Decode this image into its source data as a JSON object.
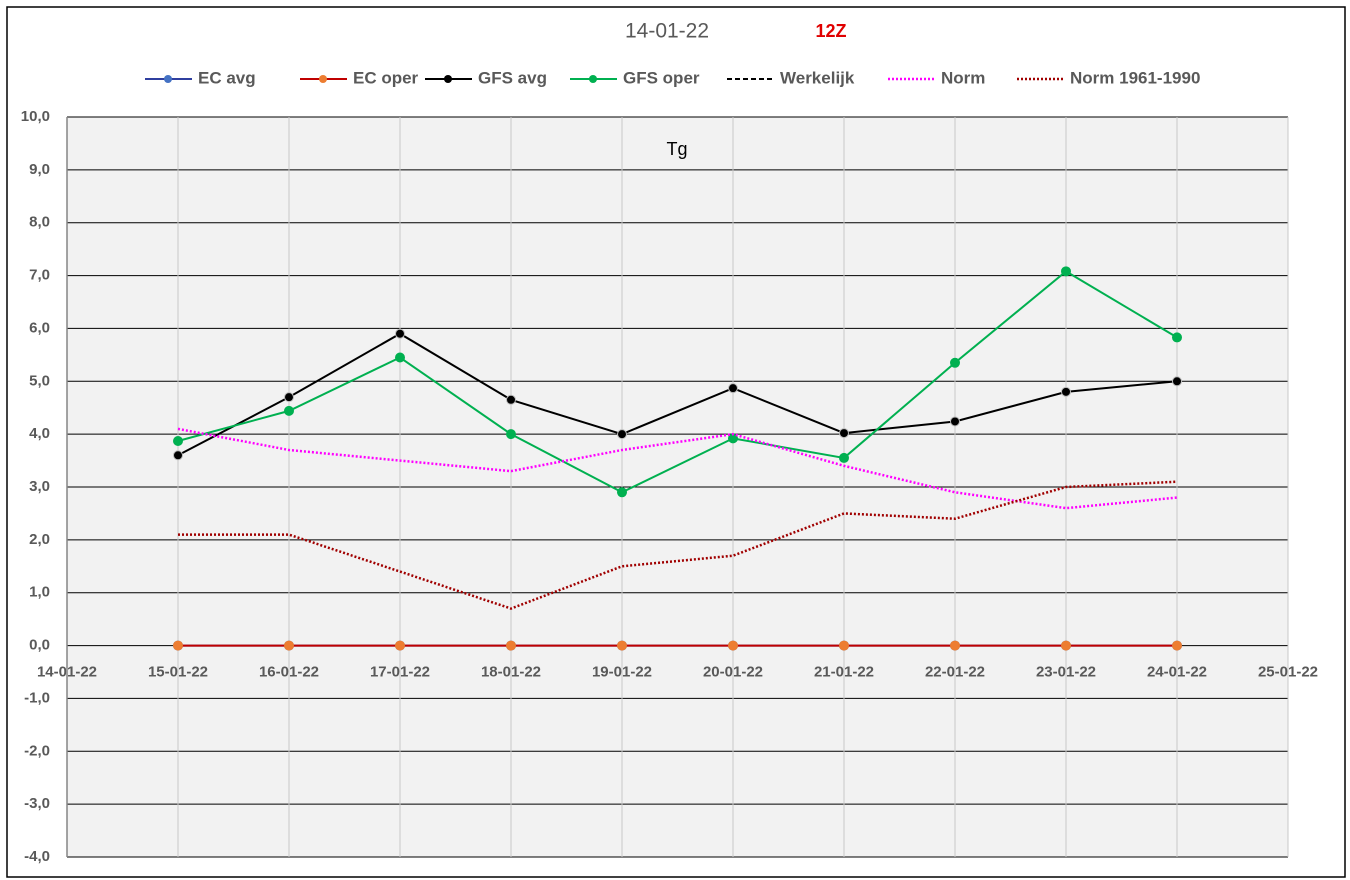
{
  "chart_data": {
    "type": "line",
    "title": "14-01-22",
    "subtitle": "12Z",
    "annotation": "Tg",
    "categories": [
      "14-01-22",
      "15-01-22",
      "16-01-22",
      "17-01-22",
      "18-01-22",
      "19-01-22",
      "20-01-22",
      "21-01-22",
      "22-01-22",
      "23-01-22",
      "24-01-22",
      "25-01-22"
    ],
    "ylim": [
      -4,
      10
    ],
    "yticks": [
      {
        "value": 10,
        "label": "10,0"
      },
      {
        "value": 9,
        "label": "9,0"
      },
      {
        "value": 8,
        "label": "8,0"
      },
      {
        "value": 7,
        "label": "7,0"
      },
      {
        "value": 6,
        "label": "6,0"
      },
      {
        "value": 5,
        "label": "5,0"
      },
      {
        "value": 4,
        "label": "4,0"
      },
      {
        "value": 3,
        "label": "3,0"
      },
      {
        "value": 2,
        "label": "2,0"
      },
      {
        "value": 1,
        "label": "1,0"
      },
      {
        "value": 0,
        "label": "0,0"
      },
      {
        "value": -1,
        "label": "-1,0"
      },
      {
        "value": -2,
        "label": "-2,0"
      },
      {
        "value": -3,
        "label": "-3,0"
      },
      {
        "value": -4,
        "label": "-4,0"
      }
    ],
    "grid": true,
    "series": [
      {
        "name": "EC avg",
        "color": "#2f3f9f",
        "marker_color": "#4472c4",
        "marker": true,
        "dash": "solid",
        "values": [
          null,
          0,
          0,
          0,
          0,
          0,
          0,
          0,
          0,
          0,
          0,
          null
        ]
      },
      {
        "name": "EC oper",
        "color": "#c00000",
        "marker_color": "#ed7d31",
        "marker": true,
        "dash": "solid",
        "values": [
          null,
          0,
          0,
          0,
          0,
          0,
          0,
          0,
          0,
          0,
          0,
          null
        ]
      },
      {
        "name": "GFS avg",
        "color": "#000000",
        "marker_color": "#000000",
        "marker": true,
        "dash": "solid",
        "values": [
          null,
          3.6,
          4.7,
          5.9,
          4.65,
          4.0,
          4.87,
          4.02,
          4.24,
          4.8,
          5.0,
          null
        ]
      },
      {
        "name": "GFS oper",
        "color": "#00b050",
        "marker_color": "#00b050",
        "marker": true,
        "dash": "solid",
        "values": [
          null,
          3.87,
          4.44,
          5.45,
          4.0,
          2.9,
          3.92,
          3.55,
          5.35,
          7.08,
          5.83,
          null
        ]
      },
      {
        "name": "Werkelijk",
        "color": "#000000",
        "marker": false,
        "dash": "dashed",
        "values": [
          null,
          null,
          null,
          null,
          null,
          null,
          null,
          null,
          null,
          null,
          null,
          null
        ]
      },
      {
        "name": "Norm",
        "color": "#ff00ff",
        "marker": false,
        "dash": "dotted",
        "values": [
          null,
          4.1,
          3.7,
          3.5,
          3.3,
          3.7,
          4.0,
          3.4,
          2.9,
          2.6,
          2.8,
          null
        ]
      },
      {
        "name": "Norm 1961-1990",
        "color": "#a00000",
        "marker": false,
        "dash": "dotted",
        "values": [
          null,
          2.1,
          2.1,
          1.4,
          0.7,
          1.5,
          1.7,
          2.5,
          2.4,
          3.0,
          3.1,
          null
        ]
      }
    ]
  }
}
